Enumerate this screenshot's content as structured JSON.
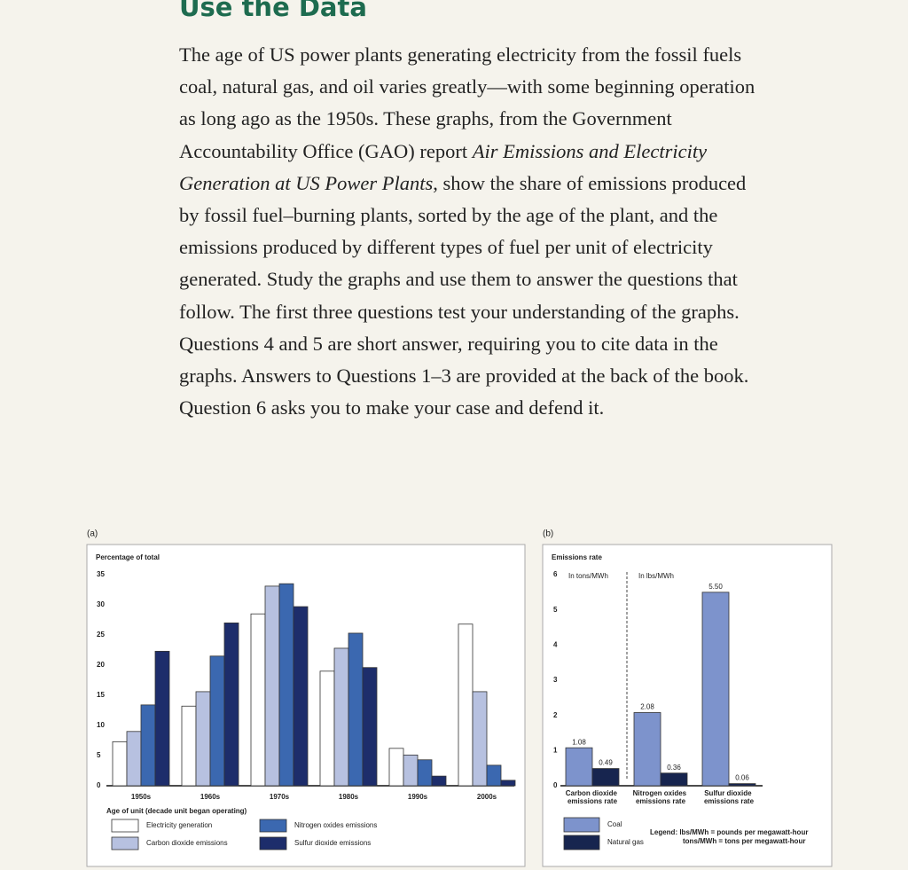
{
  "heading": "Use the Data",
  "paragraph": [
    "The age of US power plants generating electricity from the fossil fuels coal, natural gas, and oil varies greatly—with some beginning operation as long ago as the 1950s. These graphs, from the Government Accountability Office (GAO) report ",
    "Air Emissions and Electricity Generation at US Power Plants",
    ", show the share of emissions produced by fossil fuel–burning plants, sorted by the age of the plant, and the emissions produced by different types of fuel per unit of electricity generated. Study the graphs and use them to answer the questions that follow. The first three questions test your understanding of the graphs. Questions 4 and 5 are short answer, requiring you to cite data in the graphs. Answers to Questions 1–3 are provided at the back of the book. Question 6 asks you to make your case and defend it."
  ],
  "chart_data": [
    {
      "type": "bar",
      "panel": "(a)",
      "y_label": "Percentage of total",
      "x_label": "Age of unit (decade unit began operating)",
      "categories": [
        "1950s",
        "1960s",
        "1970s",
        "1980s",
        "1990s",
        "2000s"
      ],
      "ylim": [
        0,
        35
      ],
      "yticks": [
        0,
        5,
        10,
        15,
        20,
        25,
        30,
        35
      ],
      "grid": false,
      "series": [
        {
          "name": "Electricity generation",
          "color": "#ffffff",
          "values": [
            7.3,
            13.2,
            28.5,
            19,
            6.2,
            26.8
          ]
        },
        {
          "name": "Carbon dioxide emissions",
          "color": "#b7c1e0",
          "values": [
            9,
            15.6,
            33.1,
            22.8,
            5.1,
            15.6
          ]
        },
        {
          "name": "Nitrogen oxides emissions",
          "color": "#3b68b0",
          "values": [
            13.4,
            21.5,
            33.5,
            25.3,
            4.3,
            3.4
          ]
        },
        {
          "name": "Sulfur dioxide emissions",
          "color": "#1d2d6b",
          "values": [
            22.3,
            27,
            29.7,
            19.6,
            1.6,
            0.9
          ]
        }
      ]
    },
    {
      "type": "bar",
      "panel": "(b)",
      "y_label": "Emissions rate",
      "categories": [
        "Carbon dioxide emissions rate",
        "Nitrogen oxides emissions rate",
        "Sulfur dioxide emissions rate"
      ],
      "annotations": [
        "In tons/MWh",
        "In lbs/MWh"
      ],
      "legend_note": [
        "Legend: lbs/MWh = pounds per megawatt-hour",
        "tons/MWh = tons per megawatt-hour"
      ],
      "ylim": [
        0,
        6
      ],
      "yticks": [
        0,
        1,
        2,
        3,
        4,
        5,
        6
      ],
      "grid": false,
      "series": [
        {
          "name": "Coal",
          "color": "#7d93cc",
          "values": [
            1.08,
            2.08,
            5.5
          ],
          "value_labels": [
            "1.08",
            "2.08",
            "5.50"
          ]
        },
        {
          "name": "Natural gas",
          "color": "#17254f",
          "values": [
            0.49,
            0.36,
            0.06
          ],
          "value_labels": [
            "0.49",
            "0.36",
            "0.06"
          ]
        }
      ]
    }
  ]
}
